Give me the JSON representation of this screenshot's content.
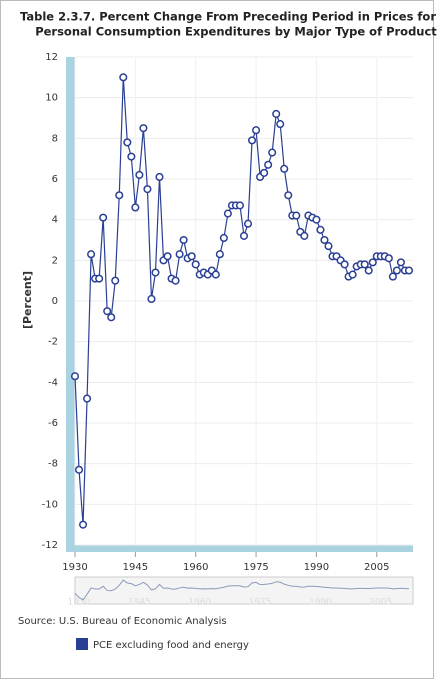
{
  "chart_data": {
    "type": "line",
    "title": [
      "Table 2.3.7. Percent Change From Preceding Period in Prices for",
      "Personal Consumption Expenditures by Major Type of Product"
    ],
    "y_label": "[Percent]",
    "source": "Source: U.S. Bureau of Economic Analysis",
    "x": [
      1930,
      1931,
      1932,
      1933,
      1934,
      1935,
      1936,
      1937,
      1938,
      1939,
      1940,
      1941,
      1942,
      1943,
      1944,
      1945,
      1946,
      1947,
      1948,
      1949,
      1950,
      1951,
      1952,
      1953,
      1954,
      1955,
      1956,
      1957,
      1958,
      1959,
      1960,
      1961,
      1962,
      1963,
      1964,
      1965,
      1966,
      1967,
      1968,
      1969,
      1970,
      1971,
      1972,
      1973,
      1974,
      1975,
      1976,
      1977,
      1978,
      1979,
      1980,
      1981,
      1982,
      1983,
      1984,
      1985,
      1986,
      1987,
      1988,
      1989,
      1990,
      1991,
      1992,
      1993,
      1994,
      1995,
      1996,
      1997,
      1998,
      1999,
      2000,
      2001,
      2002,
      2003,
      2004,
      2005,
      2006,
      2007,
      2008,
      2009,
      2010,
      2011,
      2012,
      2013
    ],
    "series": [
      {
        "name": "PCE excluding food and energy",
        "color": "#2a3f94",
        "values": [
          -3.7,
          -8.3,
          -11.0,
          -4.8,
          2.3,
          1.1,
          1.1,
          4.1,
          -0.5,
          -0.8,
          1.0,
          5.2,
          11.0,
          7.8,
          7.1,
          4.6,
          6.2,
          8.5,
          5.5,
          0.1,
          1.4,
          6.1,
          2.0,
          2.2,
          1.1,
          1.0,
          2.3,
          3.0,
          2.1,
          2.2,
          1.8,
          1.3,
          1.4,
          1.3,
          1.5,
          1.3,
          2.3,
          3.1,
          4.3,
          4.7,
          4.7,
          4.7,
          3.2,
          3.8,
          7.9,
          8.4,
          6.1,
          6.3,
          6.7,
          7.3,
          9.2,
          8.7,
          6.5,
          5.2,
          4.2,
          4.2,
          3.4,
          3.2,
          4.2,
          4.1,
          4.0,
          3.5,
          3.0,
          2.7,
          2.2,
          2.2,
          2.0,
          1.8,
          1.2,
          1.3,
          1.7,
          1.8,
          1.8,
          1.5,
          1.9,
          2.2,
          2.2,
          2.2,
          2.1,
          1.2,
          1.5,
          1.9,
          1.5,
          1.5
        ]
      }
    ],
    "xlim": [
      1930,
      2014
    ],
    "xticks": [
      1930,
      1945,
      1960,
      1975,
      1990,
      2005
    ],
    "ylim": [
      -12,
      12
    ],
    "yticks": [
      -12,
      -10,
      -8,
      -6,
      -4,
      -2,
      0,
      2,
      4,
      6,
      8,
      10,
      12
    ],
    "grid": true
  }
}
